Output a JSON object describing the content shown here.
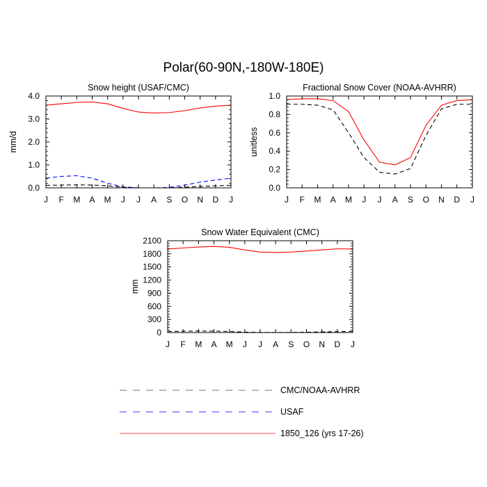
{
  "figure": {
    "title": "Polar(60-90N,-180W-180E)"
  },
  "legend": {
    "entries": [
      {
        "label": "CMC/NOAA-AVHRR",
        "color": "#000000",
        "dash": "dashed"
      },
      {
        "label": "USAF",
        "color": "#0000ff",
        "dash": "dashed"
      },
      {
        "label": "1850_126 (yrs 17-26)",
        "color": "#ff0000",
        "dash": "solid"
      }
    ]
  },
  "chart_data": [
    {
      "type": "line",
      "title": "Snow height (USAF/CMC)",
      "xlabel": "",
      "ylabel": "mm/d",
      "categories": [
        "J",
        "F",
        "M",
        "A",
        "M",
        "J",
        "J",
        "A",
        "S",
        "O",
        "N",
        "D",
        "J"
      ],
      "ylim": [
        0,
        4
      ],
      "yticks": [
        0,
        1,
        2,
        3,
        4
      ],
      "ytick_labels": [
        "0.0",
        "1.0",
        "2.0",
        "3.0",
        "4.0"
      ],
      "series": [
        {
          "name": "1850_126 (yrs 17-26)",
          "color": "#ff0000",
          "dash": "solid",
          "values": [
            3.6,
            3.66,
            3.72,
            3.74,
            3.66,
            3.46,
            3.3,
            3.26,
            3.28,
            3.36,
            3.48,
            3.56,
            3.6
          ]
        },
        {
          "name": "USAF",
          "color": "#0000ff",
          "dash": "dashed",
          "values": [
            0.42,
            0.5,
            0.53,
            0.42,
            0.2,
            0.04,
            0.0,
            0.0,
            0.02,
            0.12,
            0.25,
            0.34,
            0.42
          ]
        },
        {
          "name": "CMC/NOAA-AVHRR",
          "color": "#000000",
          "dash": "dashed",
          "values": [
            0.11,
            0.12,
            0.13,
            0.12,
            0.09,
            0.03,
            0.0,
            0.0,
            0.0,
            0.03,
            0.06,
            0.09,
            0.11
          ]
        }
      ]
    },
    {
      "type": "line",
      "title": "Fractional Snow Cover (NOAA-AVHRR)",
      "xlabel": "",
      "ylabel": "unitless",
      "categories": [
        "J",
        "F",
        "M",
        "A",
        "M",
        "J",
        "J",
        "A",
        "S",
        "O",
        "N",
        "D",
        "J"
      ],
      "ylim": [
        0,
        1
      ],
      "yticks": [
        0,
        0.2,
        0.4,
        0.6,
        0.8,
        1.0
      ],
      "ytick_labels": [
        "0.0",
        "0.2",
        "0.4",
        "0.6",
        "0.8",
        "1.0"
      ],
      "series": [
        {
          "name": "1850_126 (yrs 17-26)",
          "color": "#ff0000",
          "dash": "solid",
          "values": [
            0.96,
            0.97,
            0.97,
            0.95,
            0.83,
            0.52,
            0.28,
            0.25,
            0.33,
            0.68,
            0.9,
            0.95,
            0.96
          ]
        },
        {
          "name": "CMC/NOAA-AVHRR",
          "color": "#000000",
          "dash": "dashed",
          "values": [
            0.91,
            0.91,
            0.9,
            0.85,
            0.6,
            0.33,
            0.17,
            0.15,
            0.21,
            0.57,
            0.86,
            0.91,
            0.91
          ]
        }
      ]
    },
    {
      "type": "line",
      "title": "Snow Water Equivalent (CMC)",
      "xlabel": "",
      "ylabel": "mm",
      "categories": [
        "J",
        "F",
        "M",
        "A",
        "M",
        "J",
        "J",
        "A",
        "S",
        "O",
        "N",
        "D",
        "J"
      ],
      "ylim": [
        0,
        2100
      ],
      "yticks": [
        0,
        300,
        600,
        900,
        1200,
        1500,
        1800,
        2100
      ],
      "ytick_labels": [
        "0",
        "300",
        "600",
        "900",
        "1200",
        "1500",
        "1800",
        "2100"
      ],
      "series": [
        {
          "name": "1850_126 (yrs 17-26)",
          "color": "#ff0000",
          "dash": "solid",
          "values": [
            1910,
            1935,
            1955,
            1970,
            1950,
            1890,
            1840,
            1830,
            1840,
            1865,
            1890,
            1915,
            1910
          ]
        },
        {
          "name": "CMC/NOAA-AVHRR",
          "color": "#000000",
          "dash": "dashed",
          "values": [
            25,
            30,
            35,
            33,
            25,
            10,
            3,
            2,
            3,
            8,
            15,
            22,
            25
          ]
        }
      ]
    }
  ]
}
